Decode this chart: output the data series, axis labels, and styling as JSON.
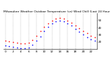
{
  "title": "Milwaukee Weather Outdoor Temperature (vs) Wind Chill (Last 24 Hours)",
  "title_fontsize": 3.2,
  "background_color": "#ffffff",
  "grid_color": "#aaaaaa",
  "hours": [
    0,
    1,
    2,
    3,
    4,
    5,
    6,
    7,
    8,
    9,
    10,
    11,
    12,
    13,
    14,
    15,
    16,
    17,
    18,
    19,
    20,
    21,
    22,
    23
  ],
  "temp": [
    22,
    21,
    20,
    19,
    18,
    18,
    19,
    23,
    29,
    35,
    41,
    46,
    50,
    52,
    53,
    52,
    50,
    47,
    43,
    39,
    35,
    32,
    29,
    27
  ],
  "windchill": [
    15,
    14,
    13,
    12,
    11,
    11,
    12,
    16,
    22,
    28,
    35,
    41,
    46,
    49,
    50,
    49,
    46,
    43,
    38,
    34,
    30,
    27,
    24,
    22
  ],
  "temp_color": "#ff0000",
  "windchill_color": "#0000ff",
  "ylim": [
    10,
    60
  ],
  "ytick_values": [
    20,
    30,
    40,
    50
  ],
  "ytick_labels": [
    "20",
    "30",
    "40",
    "50"
  ],
  "xlim": [
    -0.5,
    23.5
  ],
  "xtick_positions": [
    0,
    2,
    4,
    6,
    8,
    10,
    12,
    14,
    16,
    18,
    20,
    22
  ],
  "xtick_labels": [
    "0",
    "2",
    "4",
    "6",
    "8",
    "10",
    "12",
    "14",
    "16",
    "18",
    "20",
    "22"
  ],
  "marker_size": 1.5,
  "tick_fontsize": 3.0,
  "title_color": "#000000"
}
